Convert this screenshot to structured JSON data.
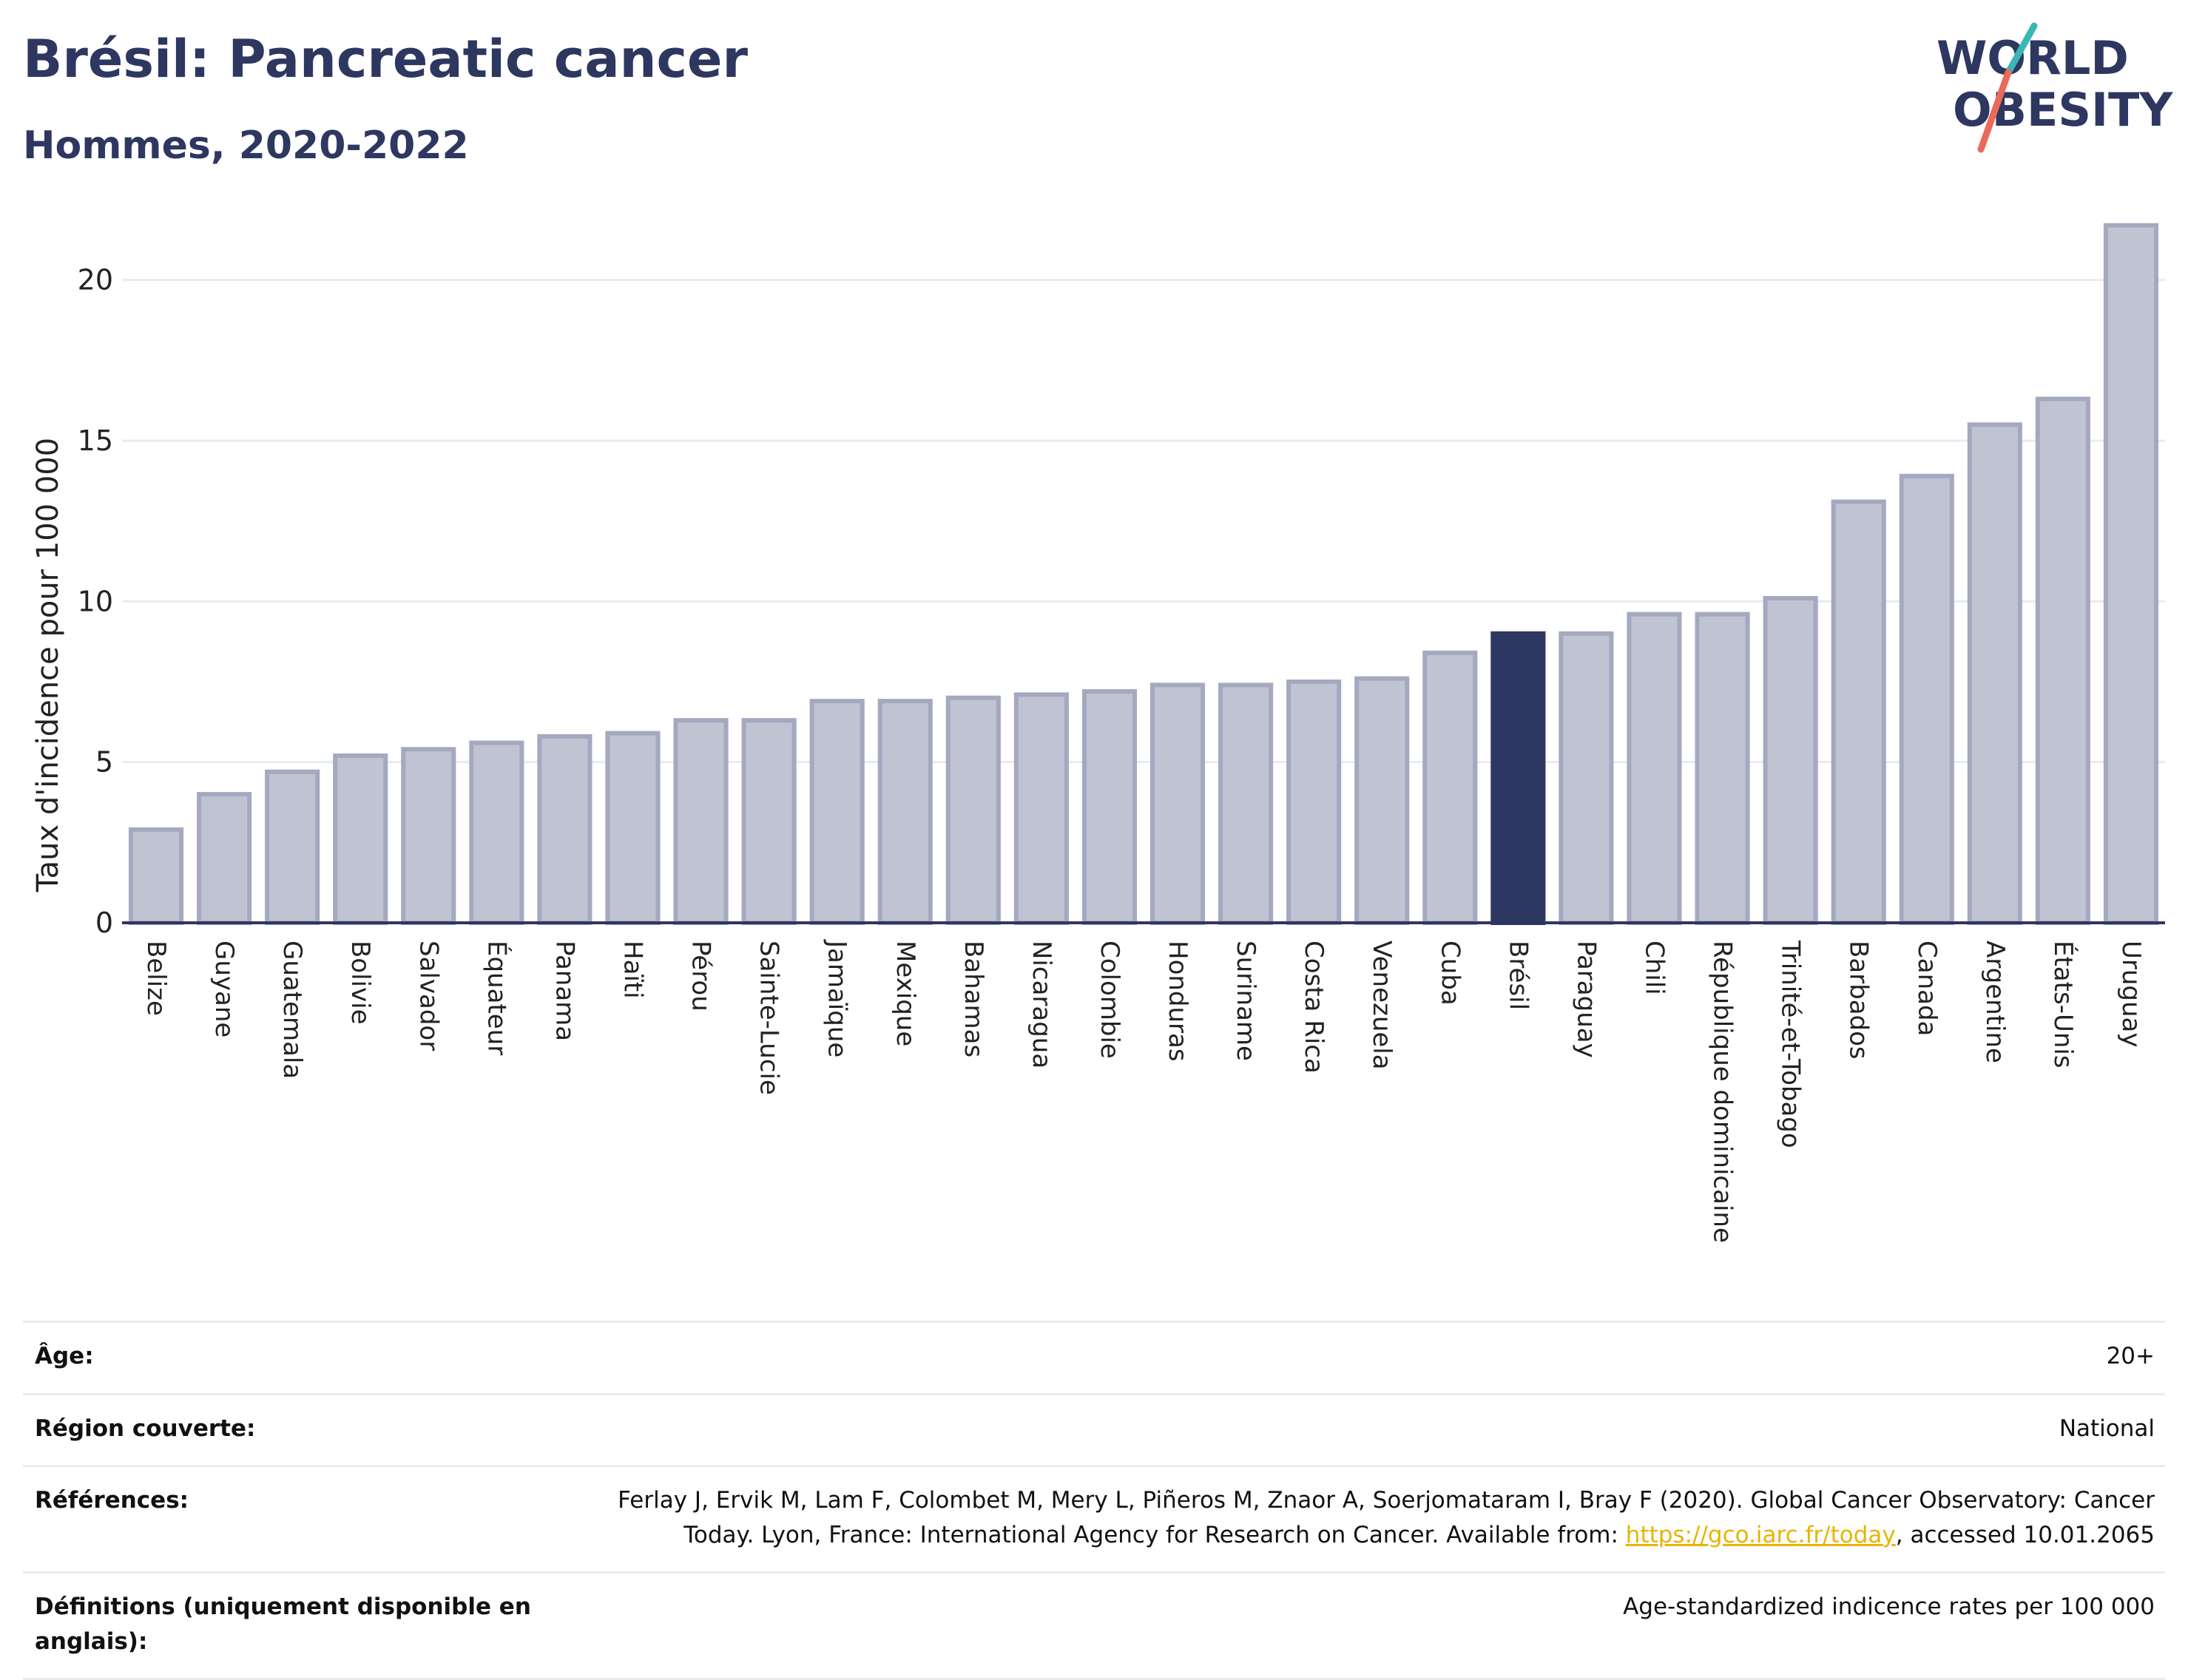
{
  "header": {
    "title": "Brésil: Pancreatic cancer",
    "subtitle": "Hommes, 2020-2022",
    "logo_line1": "WORLD",
    "logo_line2": "OBESITY"
  },
  "colors": {
    "highlight": "#2d3760",
    "bar_fill": "#c0c3d1",
    "bar_stroke": "#a4a9c1",
    "grid": "#e6ecf2",
    "logo_text": "#2d3760",
    "logo_teal": "#3ab6b6",
    "logo_coral": "#e96b5b",
    "link": "#e8b400"
  },
  "chart_data": {
    "type": "bar",
    "ylabel": "Taux d'incidence pour 100 000",
    "xlabel": "",
    "ylim": [
      0,
      22.5
    ],
    "yticks": [
      0,
      5,
      10,
      15,
      20
    ],
    "grid": true,
    "highlight_category": "Brésil",
    "categories": [
      "Belize",
      "Guyane",
      "Guatemala",
      "Bolivie",
      "Salvador",
      "Équateur",
      "Panama",
      "Haïti",
      "Pérou",
      "Sainte-Lucie",
      "Jamaïque",
      "Mexique",
      "Bahamas",
      "Nicaragua",
      "Colombie",
      "Honduras",
      "Suriname",
      "Costa Rica",
      "Venezuela",
      "Cuba",
      "Brésil",
      "Paraguay",
      "Chili",
      "République dominicaine",
      "Trinité-et-Tobago",
      "Barbados",
      "Canada",
      "Argentine",
      "États-Unis",
      "Uruguay"
    ],
    "values": [
      2.9,
      4.0,
      4.7,
      5.2,
      5.4,
      5.6,
      5.8,
      5.9,
      6.3,
      6.3,
      6.9,
      6.9,
      7.0,
      7.1,
      7.2,
      7.4,
      7.4,
      7.5,
      7.6,
      8.4,
      9.0,
      9.0,
      9.6,
      9.6,
      10.1,
      13.1,
      13.9,
      15.5,
      16.3,
      21.7
    ]
  },
  "meta": {
    "age_label": "Âge:",
    "age_value": "20+",
    "region_label": "Région couverte:",
    "region_value": "National",
    "references_label": "Références:",
    "references_text": "Ferlay J, Ervik M, Lam F, Colombet M, Mery L, Piñeros M, Znaor A, Soerjomataram I, Bray F (2020). Global Cancer Observatory: Cancer Today. Lyon, France: International Agency for Research on Cancer. Available from: ",
    "references_link": "https://gco.iarc.fr/today",
    "references_suffix": ", accessed 10.01.2065",
    "definitions_label": "Définitions (uniquement disponible en anglais):",
    "definitions_value": "Age-standardized indicence rates per 100 000"
  }
}
